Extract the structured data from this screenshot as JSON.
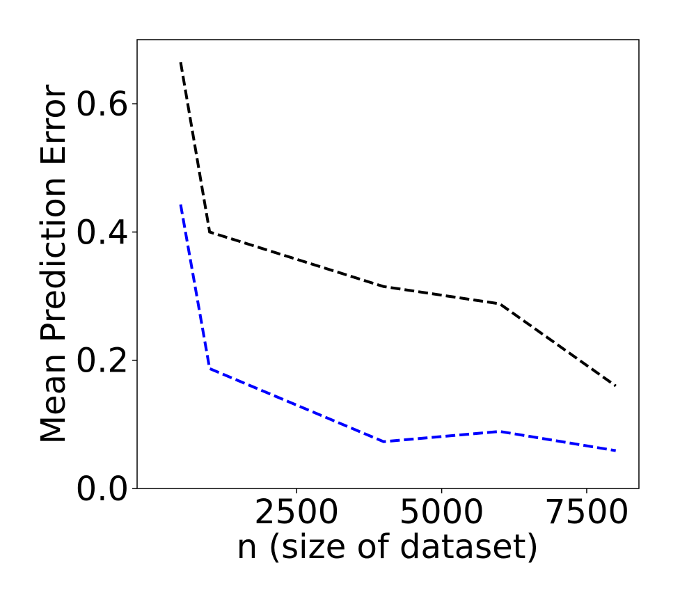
{
  "chart_data": {
    "type": "line",
    "title": "",
    "xlabel": "n (size of dataset)",
    "ylabel": "Mean Prediction Error",
    "xlim": [
      -250,
      8400
    ],
    "ylim": [
      0.0,
      0.7
    ],
    "x_ticks": [
      2500,
      5000,
      7500
    ],
    "x_tick_labels": [
      "2500",
      "5000",
      "7500"
    ],
    "y_ticks": [
      0.0,
      0.2,
      0.4,
      0.6
    ],
    "y_tick_labels": [
      "0.0",
      "0.2",
      "0.4",
      "0.6"
    ],
    "grid": false,
    "legend": null,
    "series": [
      {
        "color": "#000000",
        "line_style": "dashed",
        "x": [
          500,
          1000,
          4000,
          6000,
          8000
        ],
        "y": [
          0.665,
          0.4,
          0.315,
          0.288,
          0.16
        ]
      },
      {
        "color": "#0000ff",
        "line_style": "dashed",
        "x": [
          500,
          1000,
          4000,
          6000,
          8000
        ],
        "y": [
          0.443,
          0.187,
          0.073,
          0.089,
          0.059
        ]
      }
    ]
  }
}
